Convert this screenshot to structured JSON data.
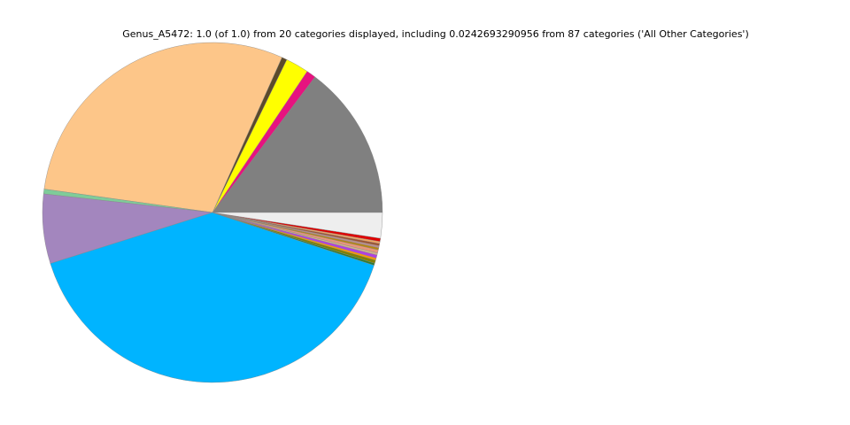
{
  "chart_data": {
    "type": "pie",
    "title": "Genus_A5472: 1.0 (of 1.0) from 20 categories displayed, including 0.0242693290956 from 87 categories ('All Other Categories')",
    "values": [
      0.147,
      0.009,
      0.022,
      0.005,
      0.295,
      0.0045,
      0.066,
      0.4012,
      0.002,
      0.003,
      0.002,
      0.003,
      0.002,
      0.003,
      0.002,
      0.002,
      0.002,
      0.002,
      0.003,
      0.0242693290956
    ],
    "colors": [
      "#808080",
      "#e6137f",
      "#ffff00",
      "#5c4a2a",
      "#fdc689",
      "#7fcc99",
      "#a386be",
      "#00b4ff",
      "#2e7d32",
      "#808000",
      "#ff9900",
      "#b040e0",
      "#d2b48c",
      "#e9967a",
      "#b8860b",
      "#bc8f8f",
      "#a0522d",
      "#f4a460",
      "#e00000",
      "#eeeeee"
    ],
    "start_angle": 0,
    "counterclockwise": true
  }
}
